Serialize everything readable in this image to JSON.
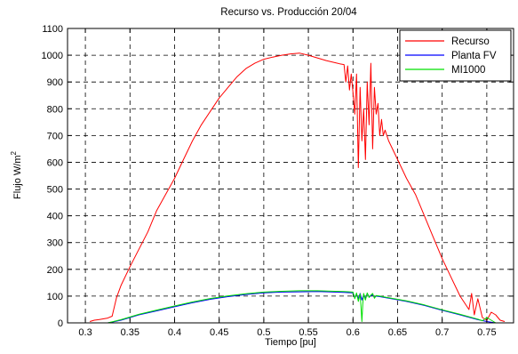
{
  "chart_data": {
    "type": "line",
    "title": "Recurso vs. Producción 20/04",
    "xlabel": "Tiempo [pu]",
    "ylabel": "Flujo W/m",
    "ylabel_superscript": "2",
    "xlim": [
      0.28,
      0.78
    ],
    "ylim": [
      0,
      1100
    ],
    "xticks": [
      "0.3",
      "0.35",
      "0.4",
      "0.45",
      "0.5",
      "0.55",
      "0.6",
      "0.65",
      "0.7",
      "0.75"
    ],
    "yticks": [
      "0",
      "100",
      "200",
      "300",
      "400",
      "500",
      "600",
      "700",
      "800",
      "900",
      "1000",
      "1100"
    ],
    "grid": true,
    "legend_position": "top-right",
    "series": [
      {
        "name": "Recurso",
        "color": "#ff0000",
        "x": [
          0.305,
          0.31,
          0.315,
          0.32,
          0.325,
          0.33,
          0.335,
          0.34,
          0.35,
          0.36,
          0.37,
          0.38,
          0.39,
          0.4,
          0.41,
          0.42,
          0.43,
          0.44,
          0.45,
          0.46,
          0.47,
          0.48,
          0.49,
          0.5,
          0.51,
          0.52,
          0.53,
          0.54,
          0.55,
          0.56,
          0.57,
          0.58,
          0.585,
          0.59,
          0.592,
          0.594,
          0.596,
          0.598,
          0.6,
          0.602,
          0.604,
          0.606,
          0.608,
          0.61,
          0.612,
          0.614,
          0.616,
          0.618,
          0.62,
          0.622,
          0.624,
          0.626,
          0.628,
          0.63,
          0.632,
          0.634,
          0.636,
          0.64,
          0.65,
          0.66,
          0.67,
          0.68,
          0.69,
          0.7,
          0.71,
          0.72,
          0.73,
          0.733,
          0.736,
          0.74,
          0.745,
          0.75,
          0.755,
          0.76,
          0.765,
          0.77
        ],
        "y": [
          5,
          10,
          12,
          15,
          18,
          25,
          95,
          140,
          210,
          275,
          340,
          420,
          480,
          540,
          610,
          680,
          740,
          790,
          840,
          880,
          920,
          950,
          970,
          985,
          993,
          1000,
          1005,
          1008,
          1000,
          990,
          980,
          972,
          968,
          965,
          900,
          960,
          870,
          930,
          860,
          780,
          930,
          580,
          880,
          680,
          800,
          610,
          900,
          740,
          970,
          650,
          880,
          780,
          820,
          700,
          760,
          700,
          720,
          680,
          610,
          540,
          480,
          400,
          320,
          240,
          170,
          100,
          50,
          110,
          30,
          90,
          20,
          10,
          40,
          30,
          10,
          5
        ]
      },
      {
        "name": "Planta FV",
        "color": "#0000ff",
        "x": [
          0.325,
          0.33,
          0.34,
          0.35,
          0.36,
          0.38,
          0.4,
          0.42,
          0.44,
          0.46,
          0.48,
          0.5,
          0.52,
          0.54,
          0.56,
          0.58,
          0.59,
          0.6,
          0.602,
          0.604,
          0.606,
          0.608,
          0.61,
          0.612,
          0.614,
          0.616,
          0.618,
          0.62,
          0.622,
          0.624,
          0.626,
          0.63,
          0.64,
          0.66,
          0.68,
          0.7,
          0.72,
          0.74,
          0.75,
          0.76
        ],
        "y": [
          0,
          3,
          10,
          20,
          30,
          45,
          60,
          75,
          88,
          98,
          106,
          112,
          115,
          116,
          117,
          115,
          114,
          112,
          95,
          108,
          90,
          110,
          85,
          105,
          92,
          110,
          98,
          100,
          105,
          95,
          100,
          98,
          92,
          80,
          65,
          47,
          30,
          12,
          5,
          0
        ]
      },
      {
        "name": "MI1000",
        "color": "#00e000",
        "x": [
          0.325,
          0.33,
          0.34,
          0.35,
          0.36,
          0.38,
          0.4,
          0.42,
          0.44,
          0.46,
          0.48,
          0.5,
          0.52,
          0.54,
          0.56,
          0.58,
          0.59,
          0.6,
          0.602,
          0.604,
          0.606,
          0.608,
          0.609,
          0.61,
          0.611,
          0.612,
          0.614,
          0.616,
          0.618,
          0.62,
          0.622,
          0.624,
          0.626,
          0.63,
          0.64,
          0.66,
          0.68,
          0.7,
          0.72,
          0.74,
          0.745,
          0.75,
          0.76
        ],
        "y": [
          0,
          4,
          12,
          22,
          32,
          48,
          63,
          78,
          91,
          101,
          109,
          115,
          118,
          120,
          120,
          118,
          117,
          115,
          90,
          112,
          80,
          108,
          60,
          5,
          70,
          110,
          85,
          112,
          95,
          104,
          110,
          92,
          102,
          100,
          94,
          82,
          67,
          49,
          32,
          14,
          8,
          20,
          0
        ]
      }
    ]
  }
}
